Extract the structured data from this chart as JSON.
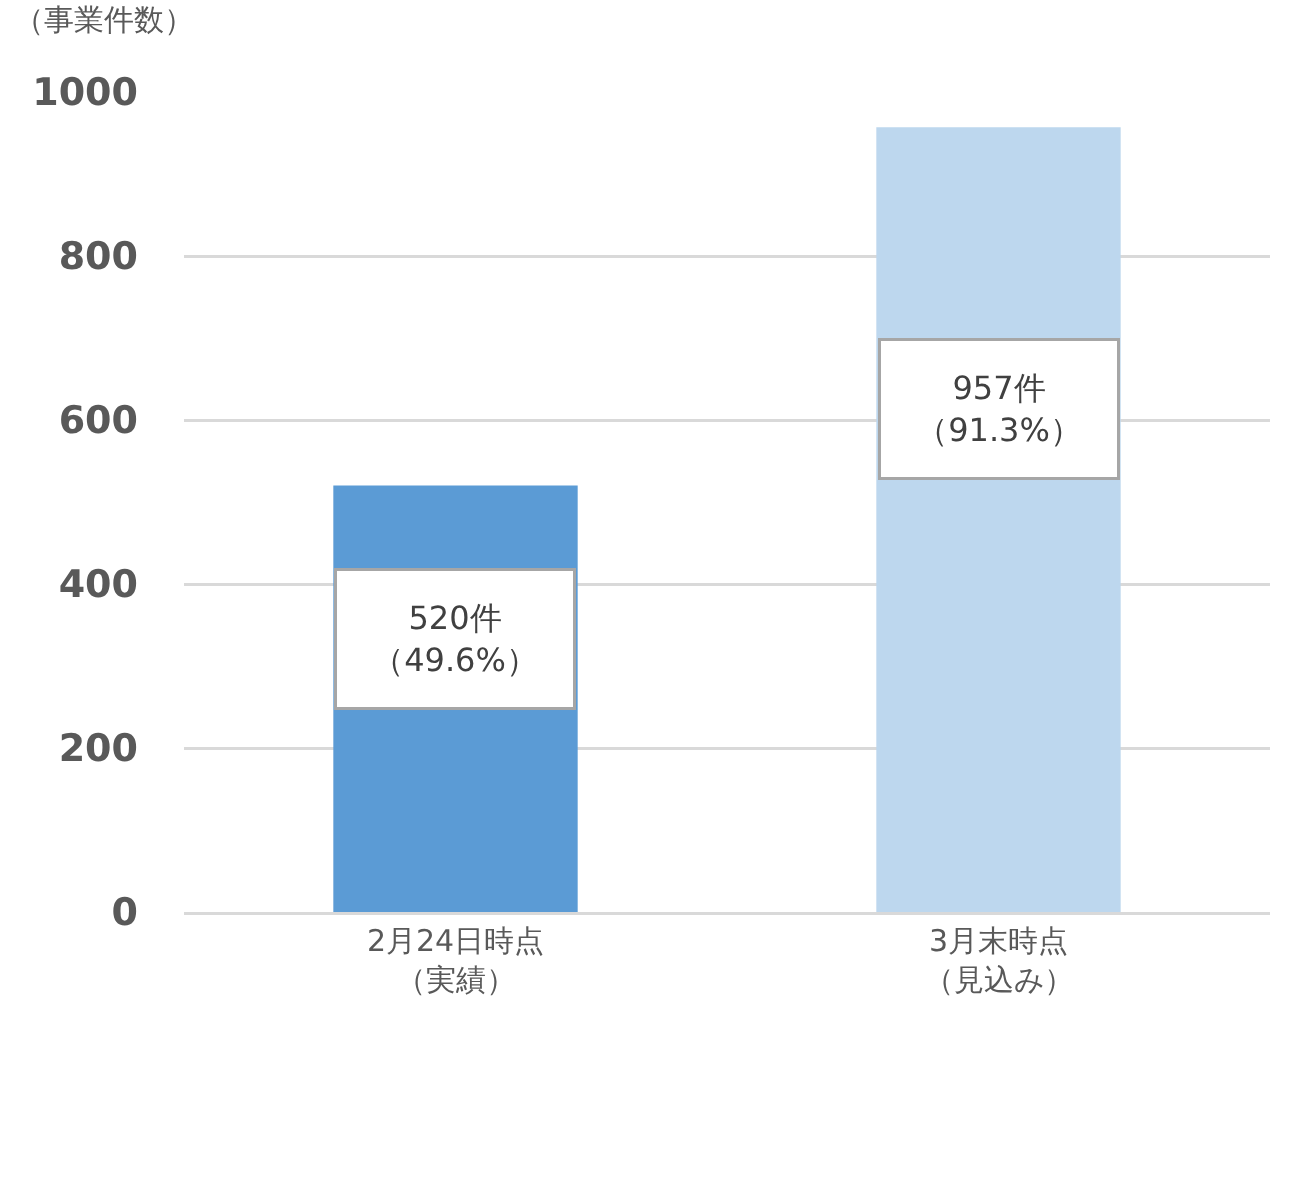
{
  "chart_data": {
    "type": "bar",
    "ylabel": "（事業件数）",
    "categories": [
      "2月24日時点（実績）",
      "3月末時点（見込み）"
    ],
    "values": [
      520,
      957
    ],
    "colors": [
      "#5b9bd5",
      "#bdd7ee"
    ],
    "value_labels": [
      "520件（49.6%）",
      "957件（91.3%）"
    ],
    "ylim": [
      0,
      1000
    ],
    "yticks": [
      0,
      200,
      400,
      600,
      800,
      1000
    ],
    "grid": "y"
  }
}
